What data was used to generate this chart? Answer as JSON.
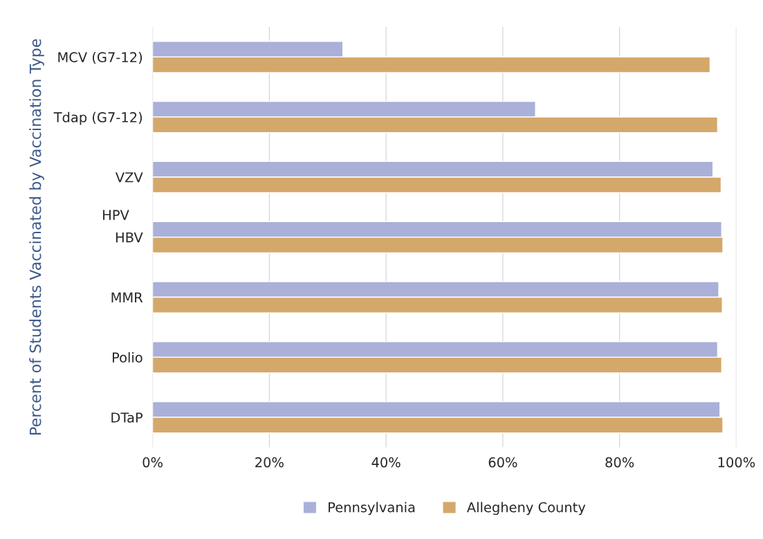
{
  "chart_data": {
    "type": "bar",
    "orientation": "horizontal",
    "ylabel": "Percent of Students Vaccinated by Vaccination Type",
    "categories": [
      "MCV (G7-12)",
      "Tdap (G7-12)",
      "VZV",
      "HBV",
      "MMR",
      "Polio",
      "DTaP"
    ],
    "series": [
      {
        "name": "Pennsylvania",
        "color": "#aab0d8",
        "values": [
          32.6,
          65.6,
          96.0,
          97.5,
          97.0,
          96.8,
          97.2
        ]
      },
      {
        "name": "Allegheny County",
        "color": "#d4a86a",
        "values": [
          95.5,
          96.8,
          97.4,
          97.7,
          97.6,
          97.5,
          97.7
        ]
      }
    ],
    "xlim": [
      0,
      100
    ],
    "xticks": [
      {
        "value": 0,
        "label": "0%"
      },
      {
        "value": 20,
        "label": "20%"
      },
      {
        "value": 40,
        "label": "40%"
      },
      {
        "value": 60,
        "label": "60%"
      },
      {
        "value": 80,
        "label": "80%"
      },
      {
        "value": 100,
        "label": "100%"
      }
    ],
    "annotations": [
      "HPV"
    ],
    "grid": "x",
    "legend": "bottom"
  }
}
